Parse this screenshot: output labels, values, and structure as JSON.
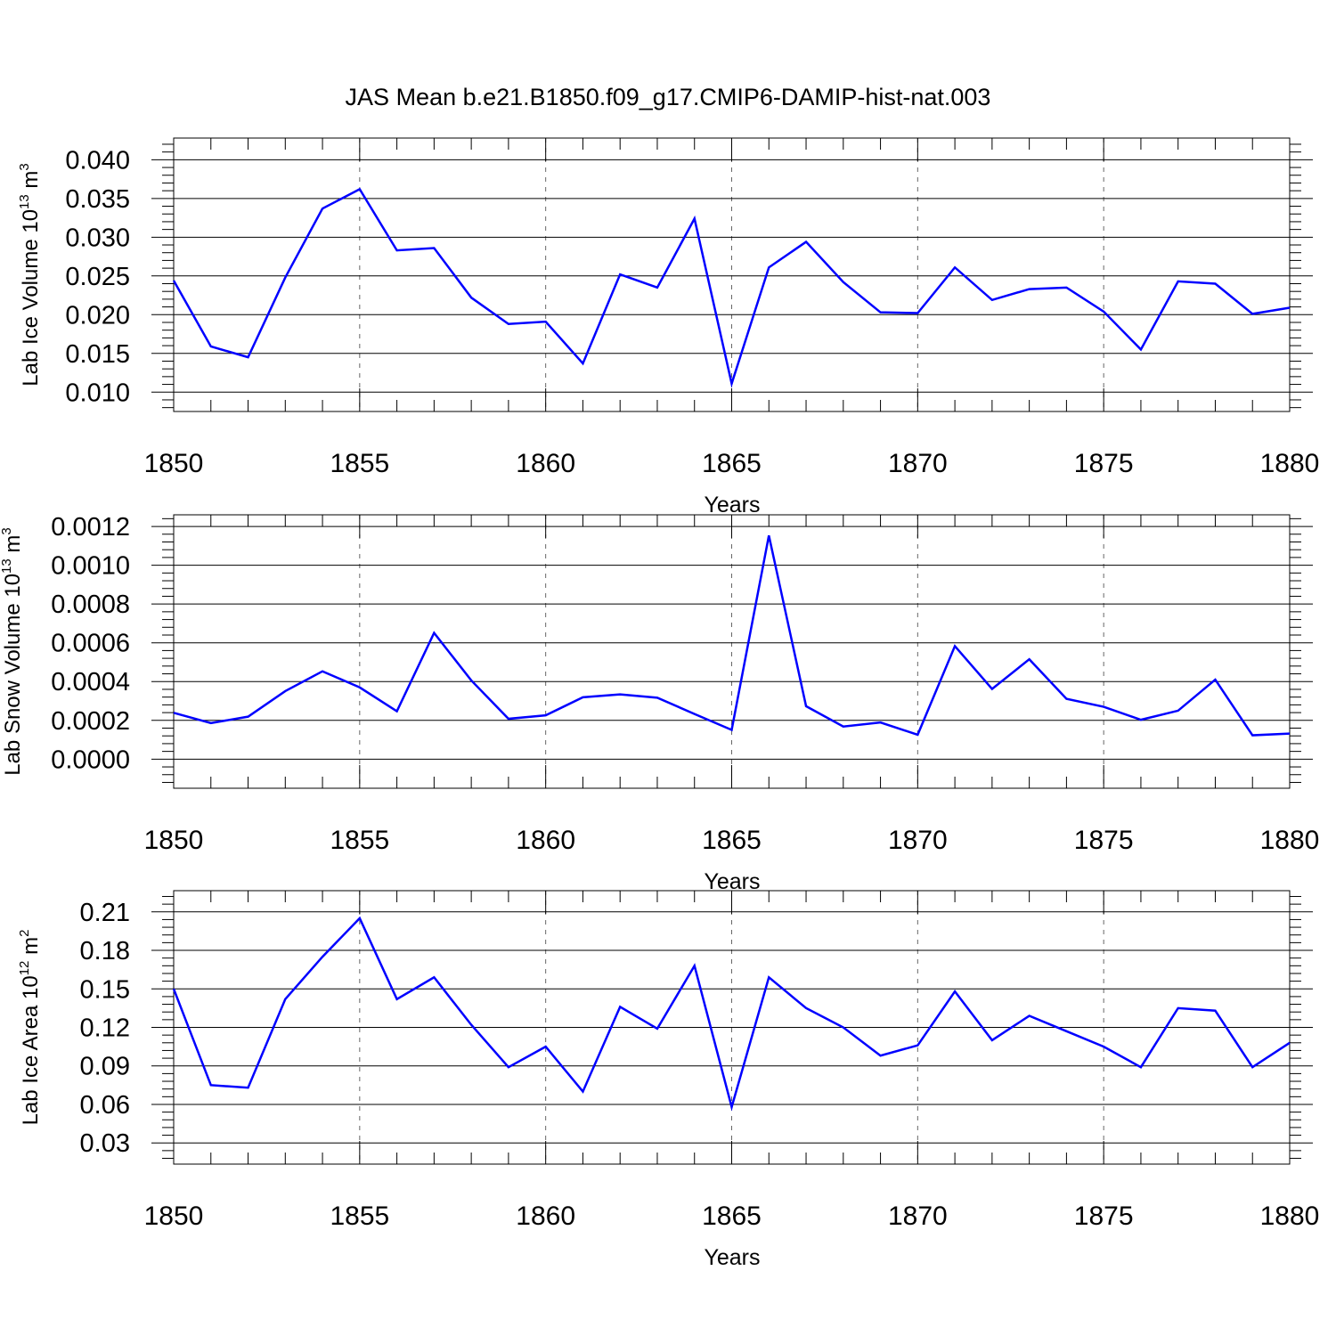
{
  "title": "JAS Mean b.e21.B1850.f09_g17.CMIP6-DAMIP-hist-nat.003",
  "colors": {
    "line": "#0000ff",
    "axis": "#000000",
    "grid": "#666666"
  },
  "chart_data": [
    {
      "type": "line",
      "title": "",
      "xlabel": "Years",
      "ylabel": {
        "main": "Lab Ice Volume 10",
        "sup": "13",
        "unit": " m",
        "unit_sup": "3"
      },
      "x": [
        1850,
        1851,
        1852,
        1853,
        1854,
        1855,
        1856,
        1857,
        1858,
        1859,
        1860,
        1861,
        1862,
        1863,
        1864,
        1865,
        1866,
        1867,
        1868,
        1869,
        1870,
        1871,
        1872,
        1873,
        1874,
        1875,
        1876,
        1877,
        1878,
        1879,
        1880
      ],
      "series": [
        {
          "values": [
            0.0244,
            0.0159,
            0.0145,
            0.0248,
            0.0337,
            0.0362,
            0.0283,
            0.0286,
            0.0222,
            0.0188,
            0.0191,
            0.0137,
            0.0252,
            0.0235,
            0.0324,
            0.0111,
            0.0261,
            0.0294,
            0.0242,
            0.0203,
            0.0202,
            0.0261,
            0.0219,
            0.0233,
            0.0235,
            0.0204,
            0.0155,
            0.0243,
            0.024,
            0.0201,
            0.0209
          ]
        }
      ],
      "xlim": [
        1850,
        1880
      ],
      "ylim": [
        0.0075,
        0.0428
      ],
      "yticks": [
        0.01,
        0.015,
        0.02,
        0.025,
        0.03,
        0.035,
        0.04
      ],
      "ytick_labels": [
        "0.010",
        "0.015",
        "0.020",
        "0.025",
        "0.030",
        "0.035",
        "0.040"
      ],
      "xticks": [
        1850,
        1855,
        1860,
        1865,
        1870,
        1875,
        1880
      ],
      "xtick_labels": [
        "1850",
        "1855",
        "1860",
        "1865",
        "1870",
        "1875",
        "1880"
      ],
      "grid": "vertical dashed at major x ticks"
    },
    {
      "type": "line",
      "title": "",
      "xlabel": "Years",
      "ylabel": {
        "main": "Lab Snow Volume 10",
        "sup": "13",
        "unit": " m",
        "unit_sup": "3"
      },
      "x": [
        1850,
        1851,
        1852,
        1853,
        1854,
        1855,
        1856,
        1857,
        1858,
        1859,
        1860,
        1861,
        1862,
        1863,
        1864,
        1865,
        1866,
        1867,
        1868,
        1869,
        1870,
        1871,
        1872,
        1873,
        1874,
        1875,
        1876,
        1877,
        1878,
        1879,
        1880
      ],
      "series": [
        {
          "values": [
            0.000239,
            0.000186,
            0.000219,
            0.000351,
            0.000453,
            0.00037,
            0.000247,
            0.000651,
            0.000406,
            0.000208,
            0.000226,
            0.000319,
            0.000334,
            0.000317,
            0.000233,
            0.000151,
            0.001153,
            0.000273,
            0.000168,
            0.000189,
            0.000126,
            0.000583,
            0.000362,
            0.000515,
            0.000311,
            0.00027,
            0.000203,
            0.00025,
            0.00041,
            0.000123,
            0.000132
          ]
        }
      ],
      "xlim": [
        1850,
        1880
      ],
      "ylim": [
        -0.00015,
        0.00126
      ],
      "yticks": [
        0.0,
        0.0002,
        0.0004,
        0.0006,
        0.0008,
        0.001,
        0.0012
      ],
      "ytick_labels": [
        "0.0000",
        "0.0002",
        "0.0004",
        "0.0006",
        "0.0008",
        "0.0010",
        "0.0012"
      ],
      "xticks": [
        1850,
        1855,
        1860,
        1865,
        1870,
        1875,
        1880
      ],
      "xtick_labels": [
        "1850",
        "1855",
        "1860",
        "1865",
        "1870",
        "1875",
        "1880"
      ],
      "grid": "vertical dashed at major x ticks"
    },
    {
      "type": "line",
      "title": "",
      "xlabel": "Years",
      "ylabel": {
        "main": "Lab Ice Area 10",
        "sup": "12",
        "unit": " m",
        "unit_sup": "2"
      },
      "x": [
        1850,
        1851,
        1852,
        1853,
        1854,
        1855,
        1856,
        1857,
        1858,
        1859,
        1860,
        1861,
        1862,
        1863,
        1864,
        1865,
        1866,
        1867,
        1868,
        1869,
        1870,
        1871,
        1872,
        1873,
        1874,
        1875,
        1876,
        1877,
        1878,
        1879,
        1880
      ],
      "series": [
        {
          "values": [
            0.15,
            0.075,
            0.073,
            0.142,
            0.175,
            0.205,
            0.142,
            0.159,
            0.122,
            0.089,
            0.105,
            0.07,
            0.136,
            0.119,
            0.168,
            0.058,
            0.159,
            0.135,
            0.12,
            0.098,
            0.106,
            0.148,
            0.11,
            0.129,
            0.117,
            0.105,
            0.089,
            0.135,
            0.133,
            0.089,
            0.108
          ]
        }
      ],
      "xlim": [
        1850,
        1880
      ],
      "ylim": [
        0.0135,
        0.2265
      ],
      "yticks": [
        0.03,
        0.06,
        0.09,
        0.12,
        0.15,
        0.18,
        0.21
      ],
      "ytick_labels": [
        "0.03",
        "0.06",
        "0.09",
        "0.12",
        "0.15",
        "0.18",
        "0.21"
      ],
      "xticks": [
        1850,
        1855,
        1860,
        1865,
        1870,
        1875,
        1880
      ],
      "xtick_labels": [
        "1850",
        "1855",
        "1860",
        "1865",
        "1870",
        "1875",
        "1880"
      ],
      "grid": "vertical dashed at major x ticks"
    }
  ]
}
